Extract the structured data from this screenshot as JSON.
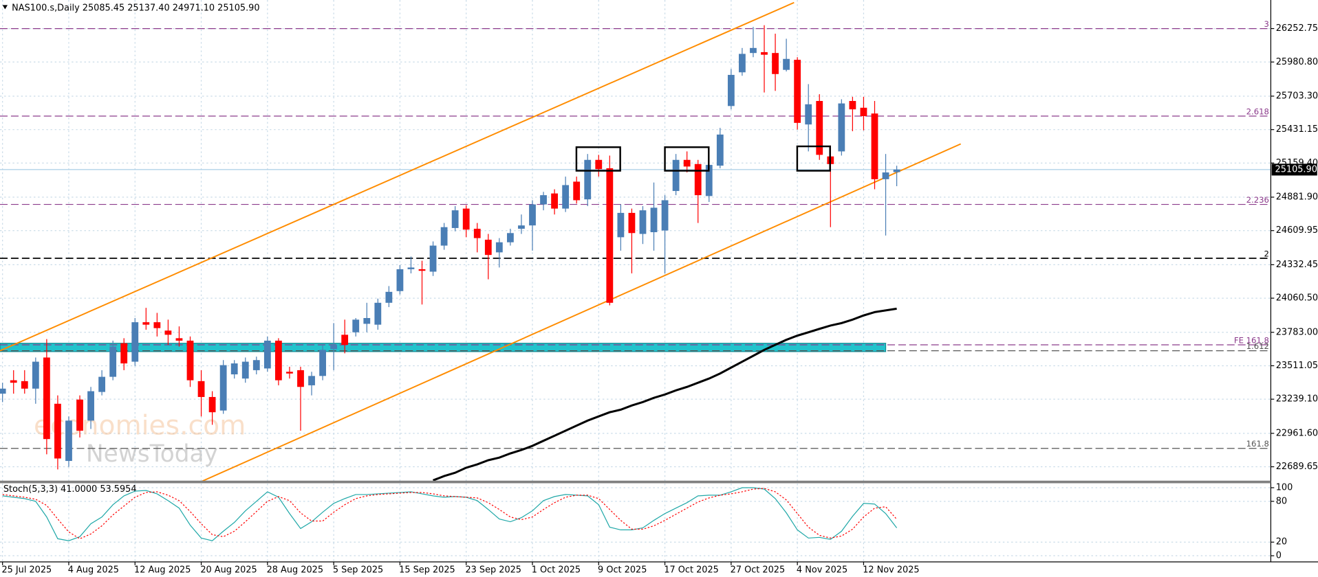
{
  "header": "NAS100.s,Daily  25085.45 25137.40 24971.10 25105.90",
  "watermark": [
    "economies.com",
    "NewsToday"
  ],
  "chart_data": [
    {
      "type": "candlestick",
      "categories": [
        "25 Jul 2025",
        null,
        null,
        null,
        null,
        null,
        "4 Aug 2025",
        null,
        null,
        null,
        null,
        null,
        "12 Aug 2025",
        null,
        null,
        null,
        null,
        null,
        "20 Aug 2025",
        null,
        null,
        null,
        null,
        null,
        "28 Aug 2025",
        null,
        null,
        null,
        null,
        null,
        "5 Sep 2025",
        null,
        null,
        null,
        null,
        null,
        "15 Sep 2025",
        null,
        null,
        null,
        null,
        null,
        "23 Sep 2025",
        null,
        null,
        null,
        null,
        null,
        "1 Oct 2025",
        null,
        null,
        null,
        null,
        null,
        "9 Oct 2025",
        null,
        null,
        null,
        null,
        null,
        "17 Oct 2025",
        null,
        null,
        null,
        null,
        null,
        "27 Oct 2025",
        null,
        null,
        null,
        null,
        null,
        "4 Nov 2025",
        null,
        null,
        null,
        null,
        null,
        "12 Nov 2025",
        null,
        null,
        null
      ],
      "open": [
        23284,
        23393,
        23386,
        23325,
        23578,
        23202,
        22737,
        23236,
        23065,
        23298,
        23421,
        23694,
        23544,
        23865,
        23865,
        23797,
        23735,
        23715,
        23386,
        23257,
        23147,
        23441,
        23407,
        23475,
        23489,
        23715,
        23462,
        23475,
        23352,
        23428,
        23646,
        23763,
        23783,
        23852,
        23845,
        24023,
        24118,
        24296,
        24296,
        24276,
        24488,
        24631,
        24789,
        24625,
        24536,
        24433,
        24515,
        24625,
        24652,
        24823,
        24912,
        24789,
        25008,
        24864,
        25185,
        25117,
        24556,
        24754,
        24583,
        24597,
        24611,
        24932,
        25185,
        25151,
        24891,
        25138,
        25623,
        25897,
        26054,
        26061,
        26054,
        25917,
        25999,
        25473,
        25664,
        25213,
        25254,
        25664,
        25609,
        25562,
        25028,
        25085.45
      ],
      "high": [
        23373,
        23475,
        23475,
        23578,
        23728,
        23270,
        23099,
        23270,
        23339,
        23475,
        23715,
        23735,
        23899,
        23982,
        23941,
        23886,
        23831,
        23749,
        23475,
        23304,
        23557,
        23557,
        23578,
        23585,
        23749,
        23735,
        23503,
        23503,
        23462,
        23681,
        23858,
        23886,
        23899,
        24023,
        24057,
        24159,
        24330,
        24399,
        24365,
        24522,
        24672,
        24809,
        24816,
        24672,
        24583,
        24549,
        24625,
        24741,
        24857,
        24925,
        24946,
        25049,
        25049,
        25233,
        25226,
        25220,
        24823,
        24789,
        24809,
        25001,
        24898,
        25233,
        25254,
        25185,
        25165,
        25445,
        25924,
        26095,
        26266,
        26280,
        26211,
        26170,
        26020,
        25801,
        25719,
        25302,
        25678,
        25698,
        25698,
        25664,
        25233,
        25137.4
      ],
      "low": [
        23215,
        23284,
        23284,
        23202,
        22791,
        22668,
        22689,
        22928,
        22997,
        23270,
        23393,
        23475,
        23510,
        23804,
        23749,
        23681,
        23667,
        23339,
        23099,
        23031,
        23120,
        23407,
        23373,
        23441,
        23462,
        23352,
        23407,
        22983,
        23270,
        23393,
        23475,
        23612,
        23749,
        23783,
        23804,
        23988,
        24091,
        24262,
        24009,
        24241,
        24454,
        24604,
        24556,
        24433,
        24214,
        24310,
        24488,
        24583,
        24447,
        24775,
        24741,
        24761,
        24830,
        24809,
        25049,
        24002,
        24447,
        24262,
        24501,
        24447,
        24262,
        24898,
        25083,
        24672,
        24843,
        25117,
        25596,
        25869,
        26020,
        25733,
        25746,
        25904,
        25432,
        25254,
        25185,
        24638,
        25220,
        25418,
        25425,
        24946,
        24570,
        24971.1
      ],
      "close": [
        23325,
        23373,
        23325,
        23544,
        22915,
        22757,
        23065,
        22983,
        23304,
        23421,
        23667,
        23530,
        23865,
        23845,
        23817,
        23763,
        23715,
        23393,
        23257,
        23133,
        23516,
        23530,
        23544,
        23557,
        23715,
        23393,
        23448,
        23339,
        23428,
        23640,
        23681,
        23681,
        23886,
        23899,
        24023,
        24112,
        24296,
        24310,
        24283,
        24488,
        24638,
        24775,
        24618,
        24549,
        24412,
        24515,
        24590,
        24652,
        24823,
        24898,
        24789,
        24980,
        24857,
        25185,
        25110,
        24023,
        24754,
        24590,
        24775,
        24796,
        24857,
        25185,
        25131,
        24898,
        25144,
        25391,
        25876,
        26047,
        26095,
        26040,
        25883,
        26006,
        25486,
        25637,
        25226,
        25151,
        25644,
        25596,
        25541,
        25028,
        25083,
        25105.9
      ],
      "up_color": "#4a7eb5",
      "down_color": "#ff0000",
      "ma": {
        "color": "#000000",
        "values": [
          null,
          null,
          null,
          null,
          null,
          null,
          null,
          null,
          null,
          null,
          null,
          null,
          null,
          null,
          null,
          null,
          null,
          null,
          null,
          null,
          null,
          null,
          null,
          null,
          null,
          null,
          null,
          null,
          null,
          null,
          null,
          null,
          null,
          null,
          null,
          null,
          null,
          null,
          null,
          22579,
          22614,
          22641,
          22682,
          22709,
          22743,
          22764,
          22798,
          22826,
          22860,
          22901,
          22942,
          22983,
          23024,
          23065,
          23099,
          23133,
          23154,
          23188,
          23216,
          23250,
          23277,
          23311,
          23339,
          23373,
          23407,
          23448,
          23496,
          23544,
          23592,
          23640,
          23681,
          23722,
          23756,
          23783,
          23811,
          23838,
          23858,
          23886,
          23920,
          23947,
          23961,
          23975
        ]
      },
      "channel": {
        "color": "#ff8c00",
        "lines": [
          {
            "x": [
              -0.23,
              71.7
            ],
            "values": [
              23633,
              26464
            ]
          },
          {
            "x": [
              18.1,
              86.8
            ],
            "values": [
              22573,
              25315
            ]
          }
        ]
      },
      "zone": {
        "color": "#22c3cc",
        "from": 23626,
        "to": 23694,
        "x": [
          -0.23,
          80
        ]
      },
      "levels": [
        {
          "value": 26252.75,
          "label": "3",
          "color": "#8b3a8b",
          "dashed": true
        },
        {
          "value": 25541,
          "label": "2.618",
          "color": "#8b3a8b",
          "dashed": true
        },
        {
          "value": 24823,
          "label": "2.236",
          "color": "#8b3a8b",
          "dashed": true
        },
        {
          "value": 24385,
          "label": "2",
          "color": "#000000",
          "dashed": true
        },
        {
          "value": 23681,
          "label": "FE 161.8",
          "color": "#8b3a8b",
          "dashed": true
        },
        {
          "value": 23633,
          "label": "1.612",
          "color": "#555555",
          "dashed": true
        },
        {
          "value": 22839,
          "label": "161.8",
          "color": "#555555",
          "dashed": true
        }
      ],
      "last_price": {
        "value": 25105.9,
        "label": "25105.90"
      },
      "ylim": [
        22573,
        26485
      ],
      "yticks": [
        {
          "value": 26252.75,
          "label": "26252.75"
        },
        {
          "value": 25980.8,
          "label": "25980.80"
        },
        {
          "value": 25703.3,
          "label": "25703.30"
        },
        {
          "value": 25431.15,
          "label": "25431.15"
        },
        {
          "value": 25159.4,
          "label": "25159.40"
        },
        {
          "value": 24881.9,
          "label": "24881.90"
        },
        {
          "value": 24609.95,
          "label": "24609.95"
        },
        {
          "value": 24332.45,
          "label": "24332.45"
        },
        {
          "value": 24060.5,
          "label": "24060.50"
        },
        {
          "value": 23783,
          "label": "23783.00"
        },
        {
          "value": 23511.05,
          "label": "23511.05"
        },
        {
          "value": 23239.1,
          "label": "23239.10"
        },
        {
          "value": 22961.6,
          "label": "22961.60"
        },
        {
          "value": 22689.65,
          "label": "22689.65"
        }
      ],
      "grid": true
    },
    {
      "type": "line",
      "title": "Stoch(5,3,3) 41.0000 53.5954",
      "series": [
        {
          "color": "#20a8a8",
          "dashed": false,
          "values": [
            88,
            86,
            84,
            80,
            57,
            25,
            22,
            28,
            47,
            57,
            75,
            88,
            95,
            96,
            91,
            81,
            70,
            45,
            26,
            22,
            36,
            49,
            66,
            80,
            94,
            86,
            62,
            40,
            50,
            64,
            77,
            84,
            90,
            90,
            91,
            92,
            93,
            94,
            91,
            88,
            86,
            87,
            86,
            81,
            68,
            54,
            50,
            56,
            66,
            81,
            87,
            90,
            89,
            88,
            75,
            42,
            38,
            38,
            41,
            52,
            62,
            70,
            78,
            88,
            89,
            89,
            94,
            100,
            100,
            98,
            84,
            63,
            38,
            26,
            27,
            24,
            36,
            58,
            77,
            76,
            62,
            41
          ]
        },
        {
          "color": "#ff0000",
          "dashed": true,
          "values": [
            90,
            88,
            86,
            83,
            74,
            54,
            35,
            25,
            32,
            44,
            60,
            73,
            86,
            93,
            94,
            89,
            81,
            65,
            47,
            31,
            28,
            36,
            50,
            65,
            80,
            87,
            81,
            63,
            51,
            51,
            64,
            75,
            84,
            88,
            90,
            91,
            92,
            93,
            93,
            91,
            88,
            87,
            86,
            85,
            78,
            68,
            57,
            53,
            57,
            68,
            78,
            86,
            89,
            89,
            84,
            68,
            52,
            39,
            39,
            44,
            52,
            61,
            70,
            79,
            85,
            89,
            91,
            94,
            98,
            99,
            94,
            82,
            62,
            42,
            30,
            26,
            29,
            39,
            57,
            70,
            72,
            53.5954
          ]
        }
      ],
      "ylim": [
        -9,
        106
      ],
      "yticks": [
        100,
        80,
        20,
        0
      ],
      "grid": true
    }
  ]
}
